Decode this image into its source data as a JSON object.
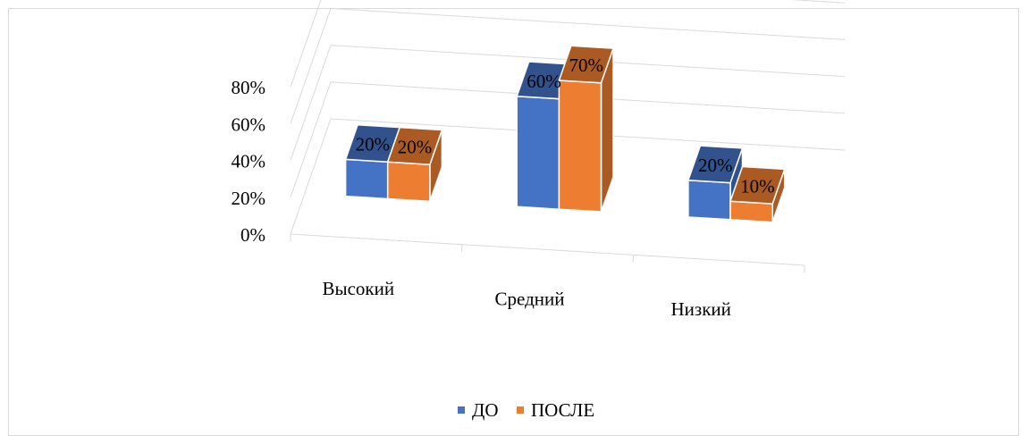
{
  "chart_data": {
    "type": "bar",
    "subtype": "3d-clustered-column",
    "title": "",
    "xlabel": "",
    "ylabel": "",
    "categories": [
      "Высокий",
      "Средний",
      "Низкий"
    ],
    "series": [
      {
        "name": "ДО",
        "values": [
          0.2,
          0.6,
          0.2
        ],
        "labels": [
          "20%",
          "60%",
          "20%"
        ],
        "color": "#4472C4"
      },
      {
        "name": "ПОСЛЕ",
        "values": [
          0.2,
          0.7,
          0.1
        ],
        "labels": [
          "20%",
          "70%",
          "10%"
        ],
        "color": "#ED7D31"
      }
    ],
    "ylim": [
      0,
      0.8
    ],
    "yticks": [
      0,
      0.2,
      0.4,
      0.6,
      0.8
    ],
    "ytick_labels": [
      "0%",
      "20%",
      "40%",
      "60%",
      "80%"
    ],
    "grid": true,
    "legend_position": "bottom"
  }
}
